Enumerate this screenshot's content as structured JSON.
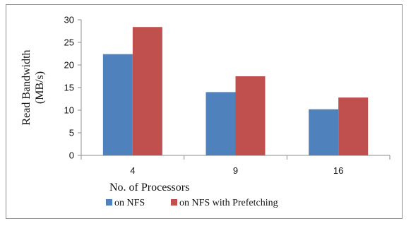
{
  "chart_data": {
    "type": "bar",
    "categories": [
      "4",
      "9",
      "16"
    ],
    "series": [
      {
        "name": "on NFS",
        "values": [
          22.4,
          14.0,
          10.2
        ],
        "color": "#4f81bd"
      },
      {
        "name": "on NFS with Prefetching",
        "values": [
          28.4,
          17.5,
          12.8
        ],
        "color": "#c0504d"
      }
    ],
    "xlabel": "No. of Processors",
    "ylabel_lines": [
      "Read Bandwidth",
      "(MB/s)"
    ],
    "ylim": [
      0,
      30
    ],
    "yticks": [
      0,
      5,
      10,
      15,
      20,
      25,
      30
    ],
    "grid": false,
    "legend_position": "bottom"
  }
}
